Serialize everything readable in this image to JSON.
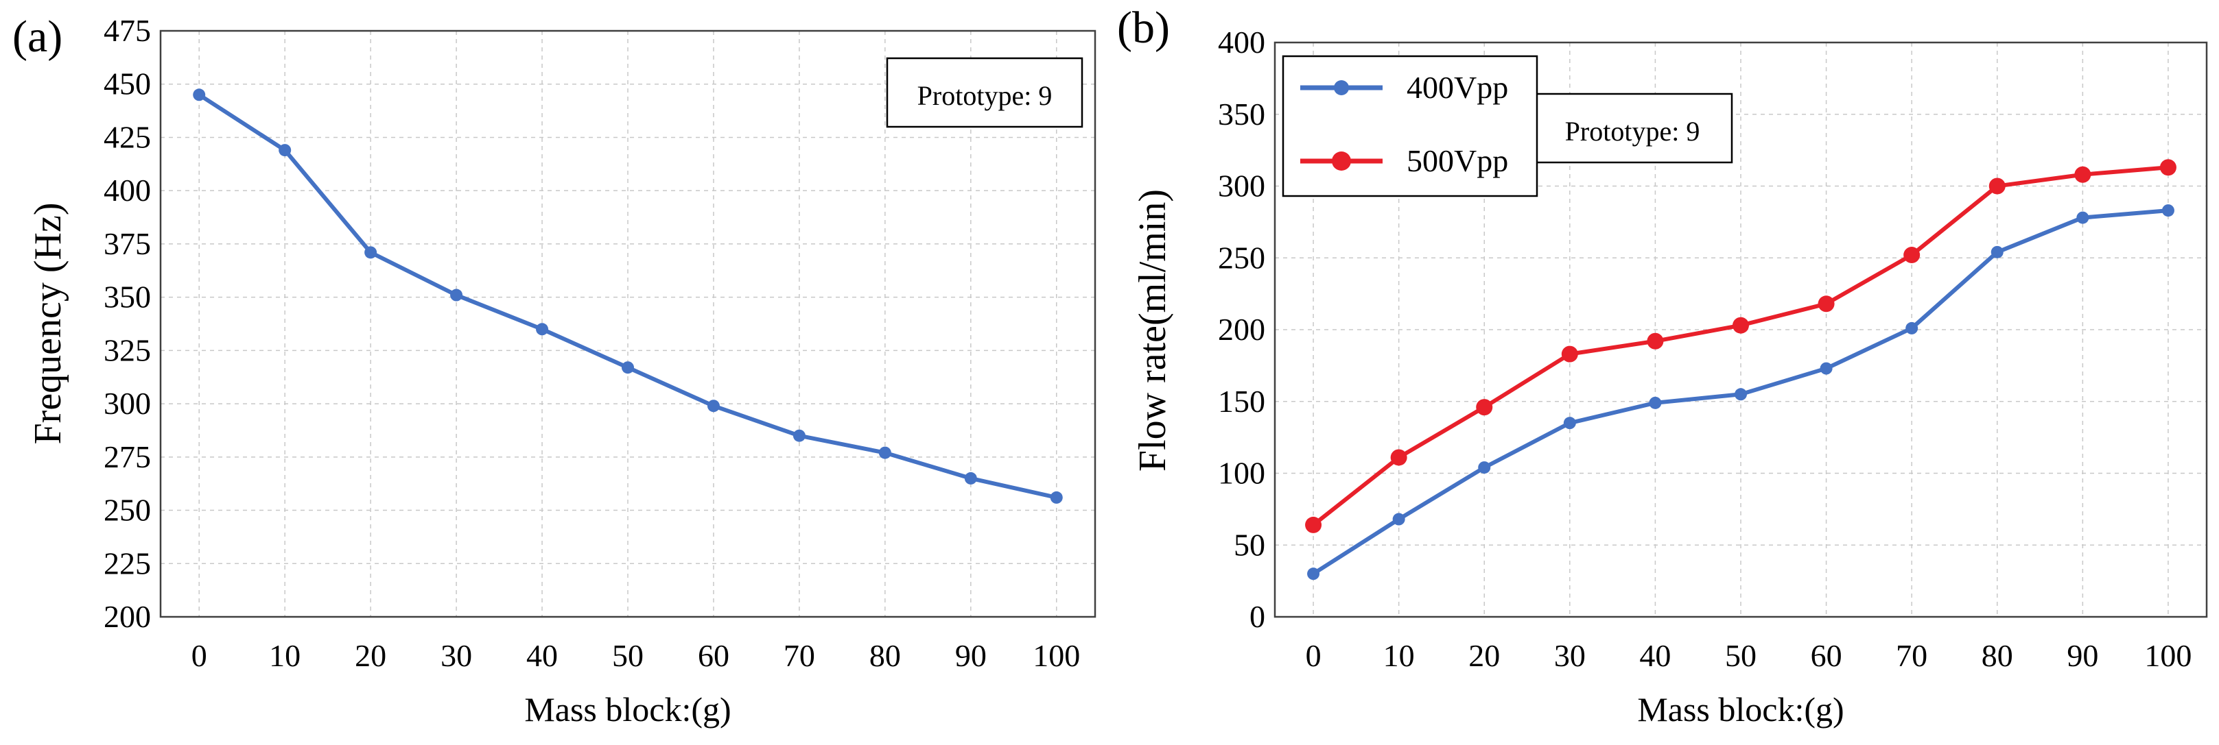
{
  "chart_data": [
    {
      "type": "line",
      "panel_label": "(a)",
      "xlabel": "Mass block:(g)",
      "ylabel": "Frequency (Hz)",
      "x": [
        0,
        10,
        20,
        30,
        40,
        50,
        60,
        70,
        80,
        90,
        100
      ],
      "x_ticks": [
        "0",
        "10",
        "20",
        "30",
        "40",
        "50",
        "60",
        "70",
        "80",
        "90",
        "100"
      ],
      "y_ticks": [
        "200",
        "225",
        "250",
        "275",
        "300",
        "325",
        "350",
        "375",
        "400",
        "425",
        "450",
        "475"
      ],
      "xlim": [
        -4.5,
        104.5
      ],
      "ylim": [
        200,
        475
      ],
      "grid": true,
      "annotation": "Prototype: 9",
      "series": [
        {
          "color": "#4472c4",
          "values": [
            445,
            419,
            371,
            351,
            335,
            317,
            299,
            285,
            277,
            265,
            256
          ]
        }
      ]
    },
    {
      "type": "line",
      "panel_label": "(b)",
      "xlabel": "Mass block:(g)",
      "ylabel": "Flow rate(ml/min)",
      "x": [
        0,
        10,
        20,
        30,
        40,
        50,
        60,
        70,
        80,
        90,
        100
      ],
      "x_ticks": [
        "0",
        "10",
        "20",
        "30",
        "40",
        "50",
        "60",
        "70",
        "80",
        "90",
        "100"
      ],
      "y_ticks": [
        "0",
        "50",
        "100",
        "150",
        "200",
        "250",
        "300",
        "350",
        "400"
      ],
      "xlim": [
        -4.5,
        104.5
      ],
      "ylim": [
        0,
        400
      ],
      "grid": true,
      "legend_position": "top-left",
      "annotation": "Prototype: 9",
      "series": [
        {
          "name": "400Vpp",
          "color": "#4472c4",
          "values": [
            30,
            68,
            104,
            135,
            149,
            155,
            173,
            201,
            254,
            278,
            283
          ]
        },
        {
          "name": "500Vpp",
          "color": "#e8202a",
          "values": [
            64,
            111,
            146,
            183,
            192,
            203,
            218,
            252,
            300,
            308,
            313
          ]
        }
      ]
    }
  ]
}
